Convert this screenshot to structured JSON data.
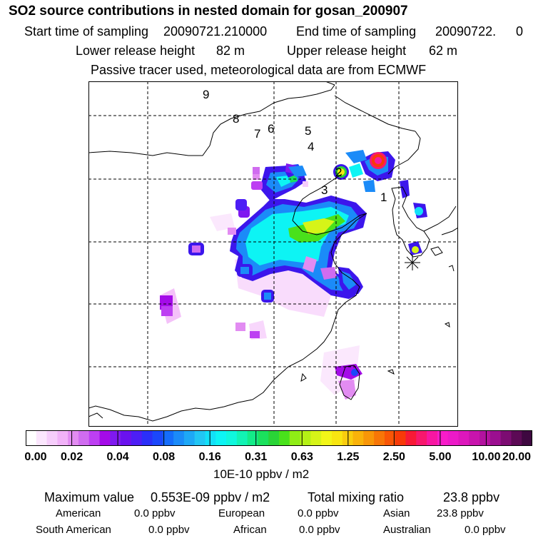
{
  "chart_data": {
    "type": "heatmap",
    "title": "SO2 source contributions in nested domain for gosan_200907",
    "header": {
      "start_label": "Start time of sampling",
      "start_value": "20090721.210000",
      "end_label": "End time of sampling",
      "end_value": "20090722.",
      "end_suffix": "0",
      "lower_label": "Lower release height",
      "lower_value": "82 m",
      "upper_label": "Upper release height",
      "upper_value": "62 m",
      "note": "Passive tracer used, meteorological data are from ECMWF"
    },
    "colorbar": {
      "ticks": [
        "0.00",
        "0.02",
        "0.04",
        "0.08",
        "0.16",
        "0.31",
        "0.63",
        "1.25",
        "2.50",
        "5.00",
        "10.00",
        "20.00"
      ],
      "colors": [
        "#ffffff",
        "#fbe6fd",
        "#f6cdfb",
        "#f1b2f8",
        "#e28cf2",
        "#d06cf0",
        "#bd3ff2",
        "#a40be8",
        "#7f19f0",
        "#6a12ee",
        "#4d1ef5",
        "#2b2ff8",
        "#1b47fb",
        "#156dfb",
        "#1b8bf8",
        "#1ea8f6",
        "#22c6f4",
        "#12e0f8",
        "#0df4f4",
        "#10f7dd",
        "#12f3b4",
        "#13ec88",
        "#1be15d",
        "#2ad437",
        "#49e11b",
        "#8fed16",
        "#b5f116",
        "#d6f418",
        "#f2f618",
        "#f8e611",
        "#f9cd0e",
        "#f9b20a",
        "#f89608",
        "#f77607",
        "#f85606",
        "#f83a08",
        "#f81a36",
        "#f8186d",
        "#f817a2",
        "#f81cc9",
        "#ec1ac8",
        "#dd17bc",
        "#c814ad",
        "#b3129f",
        "#9b0f90",
        "#7c0c72",
        "#5c0a55",
        "#3e0840"
      ],
      "unit": "10E-10 ppbv / m2"
    },
    "stations": [
      {
        "label": "1"
      },
      {
        "label": "2"
      },
      {
        "label": "3"
      },
      {
        "label": "4"
      },
      {
        "label": "5"
      },
      {
        "label": "6"
      },
      {
        "label": "7"
      },
      {
        "label": "8"
      },
      {
        "label": "9"
      }
    ],
    "summary": {
      "max_label": "Maximum value",
      "max_value": "0.553E-09 ppbv / m2",
      "total_label": "Total mixing ratio",
      "total_value": "23.8 ppbv",
      "regions": [
        {
          "name": "American",
          "value": "0.0 ppbv"
        },
        {
          "name": "European",
          "value": "0.0 ppbv"
        },
        {
          "name": "Asian",
          "value": "23.8 ppbv"
        },
        {
          "name": "South American",
          "value": "0.0 ppbv"
        },
        {
          "name": "African",
          "value": "0.0 ppbv"
        },
        {
          "name": "Australian",
          "value": "0.0 ppbv"
        }
      ]
    },
    "grid": "dashed",
    "receptor_symbol": "asterisk"
  }
}
